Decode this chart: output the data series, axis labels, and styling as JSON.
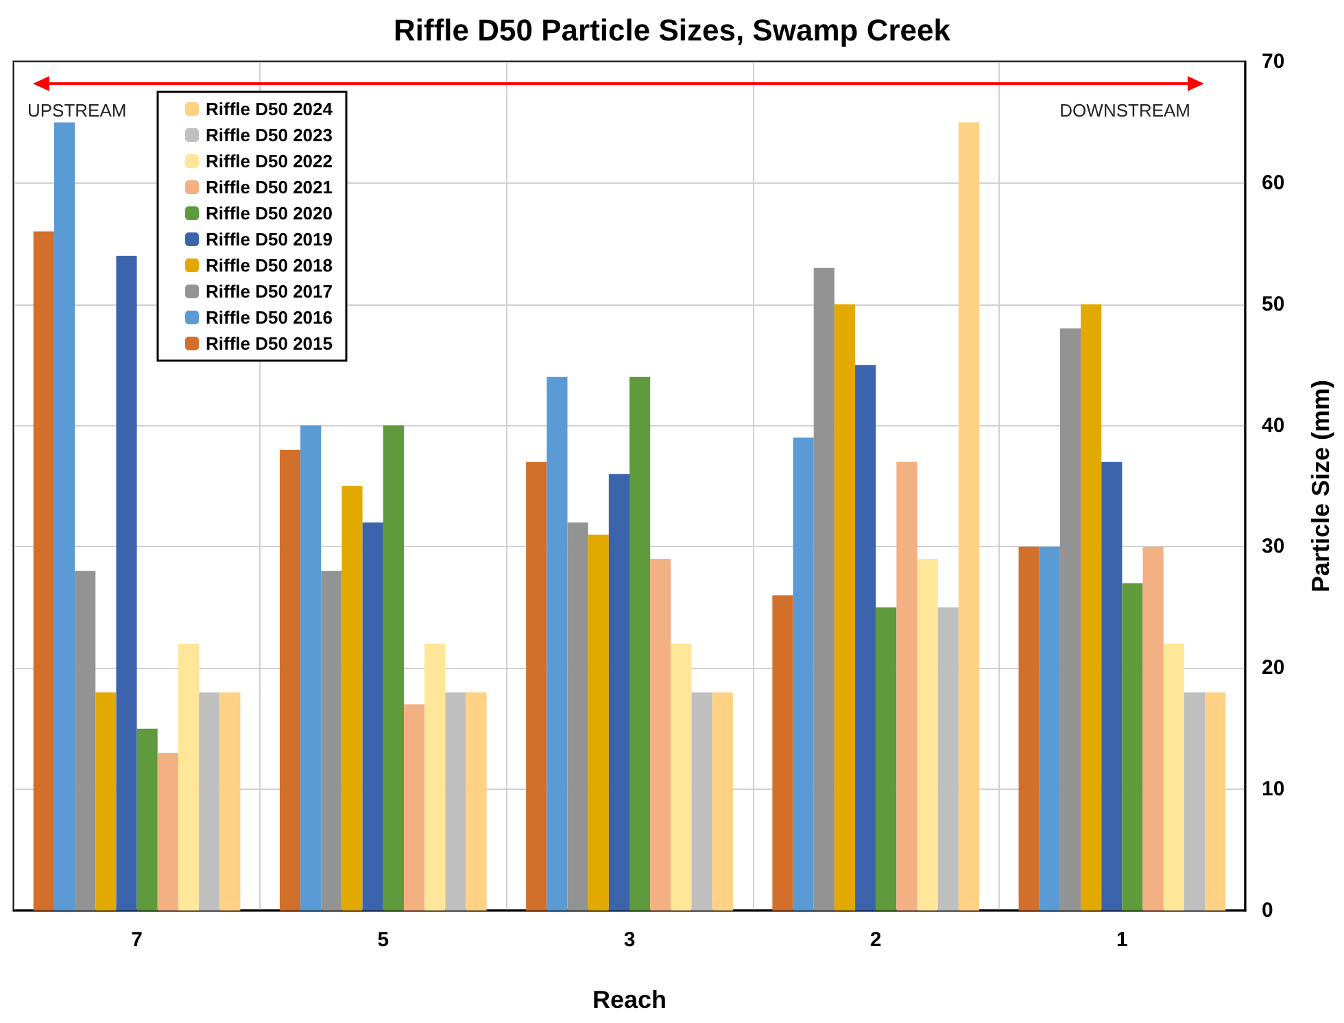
{
  "chart_data": {
    "type": "bar",
    "title": "Riffle D50 Particle Sizes, Swamp Creek",
    "xlabel": "Reach",
    "ylabel": "Particle Size (mm)",
    "categories": [
      "7",
      "5",
      "3",
      "2",
      "1"
    ],
    "series": [
      {
        "name": "Riffle D50 2015",
        "color": "#d2702b",
        "values": [
          56,
          38,
          37,
          26,
          30
        ]
      },
      {
        "name": "Riffle D50 2016",
        "color": "#5b9bd5",
        "values": [
          65,
          40,
          44,
          39,
          30
        ]
      },
      {
        "name": "Riffle D50 2017",
        "color": "#939393",
        "values": [
          28,
          28,
          32,
          53,
          48
        ]
      },
      {
        "name": "Riffle D50 2018",
        "color": "#e2a900",
        "values": [
          18,
          35,
          31,
          50,
          50
        ]
      },
      {
        "name": "Riffle D50 2019",
        "color": "#3b64ad",
        "values": [
          54,
          32,
          36,
          45,
          37
        ]
      },
      {
        "name": "Riffle D50 2020",
        "color": "#5f9a3c",
        "values": [
          15,
          40,
          44,
          25,
          27
        ]
      },
      {
        "name": "Riffle D50 2021",
        "color": "#f3b083",
        "values": [
          13,
          17,
          29,
          37,
          30
        ]
      },
      {
        "name": "Riffle D50 2022",
        "color": "#ffe699",
        "values": [
          22,
          22,
          22,
          29,
          22
        ]
      },
      {
        "name": "Riffle D50 2023",
        "color": "#bfbfbf",
        "values": [
          18,
          18,
          18,
          25,
          18
        ]
      },
      {
        "name": "Riffle D50 2024",
        "color": "#ffd185",
        "values": [
          18,
          18,
          18,
          65,
          18
        ]
      }
    ],
    "ylim": [
      0,
      70
    ],
    "yticks": [
      0,
      10,
      20,
      30,
      40,
      50,
      60,
      70
    ],
    "grid": true,
    "legend": "top left",
    "annotations": [
      "UPSTREAM",
      "DOWNSTREAM"
    ]
  }
}
